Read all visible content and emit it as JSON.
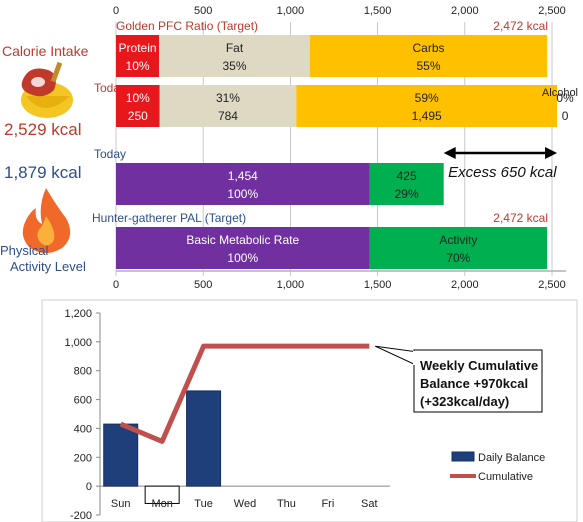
{
  "left_panel": {
    "calorie_intake_label": "Calorie Intake",
    "calorie_intake_value": "2,529 kcal",
    "expenditure_value": "1,879 kcal",
    "activity_label_line1": "Physical",
    "activity_label_line2": "Activity Level"
  },
  "colors": {
    "red": "#e8171c",
    "beige": "#ddd9c3",
    "amber": "#ffc000",
    "purple": "#7030a0",
    "green": "#00b050",
    "navy": "#1f3f7a",
    "cumulative": "#c0504d"
  },
  "chart_data": [
    {
      "type": "bar",
      "orientation": "horizontal",
      "stacked": true,
      "x_ticks": [
        "0",
        "500",
        "1,000",
        "1,500",
        "2,000",
        "2,500"
      ],
      "xlim": [
        0,
        2500
      ],
      "rows": [
        {
          "title": "Golden PFC Ratio (Target)",
          "total_label": "2,472 kcal",
          "segments": [
            {
              "name": "Protein",
              "value": 247,
              "line1": "Protein",
              "line2": "10%",
              "color": "#e8171c"
            },
            {
              "name": "Fat",
              "value": 865,
              "line1": "Fat",
              "line2": "35%",
              "color": "#ddd9c3"
            },
            {
              "name": "Carbs",
              "value": 1360,
              "line1": "Carbs",
              "line2": "55%",
              "color": "#ffc000"
            }
          ]
        },
        {
          "title": "Today",
          "total_label": "",
          "extra_label": "Alcohol",
          "segments": [
            {
              "name": "Protein",
              "value": 250,
              "line1": "10%",
              "line2": "250",
              "color": "#e8171c"
            },
            {
              "name": "Fat",
              "value": 784,
              "line1": "31%",
              "line2": "784",
              "color": "#ddd9c3"
            },
            {
              "name": "Carbs",
              "value": 1495,
              "line1": "59%",
              "line2": "1,495",
              "color": "#ffc000"
            },
            {
              "name": "Alcohol",
              "value": 0,
              "line1": "0%",
              "line2": "0",
              "color": "#ffc000"
            }
          ]
        },
        {
          "title": "Today",
          "total_label": "",
          "segments": [
            {
              "name": "Basic Metabolic Rate",
              "value": 1454,
              "line1": "1,454",
              "line2": "100%",
              "color": "#7030a0"
            },
            {
              "name": "Activity",
              "value": 425,
              "line1": "425",
              "line2": "29%",
              "color": "#00b050"
            }
          ]
        },
        {
          "title": "Hunter-gatherer  PAL (Target)",
          "total_label": "2,472 kcal",
          "segments": [
            {
              "name": "Basic Metabolic Rate",
              "value": 1454,
              "line1": "Basic Metabolic Rate",
              "line2": "100%",
              "color": "#7030a0"
            },
            {
              "name": "Activity",
              "value": 1018,
              "line1": "Activity",
              "line2": "70%",
              "color": "#00b050"
            }
          ]
        }
      ],
      "annotation": {
        "text": "Excess 650 kcal",
        "from": 1879,
        "to": 2529
      }
    },
    {
      "type": "bar",
      "combo": "bar+line",
      "categories": [
        "Sun",
        "Mon",
        "Tue",
        "Wed",
        "Thu",
        "Fri",
        "Sat"
      ],
      "ylim": [
        -200,
        1200
      ],
      "y_ticks": [
        "-200",
        "0",
        "200",
        "400",
        "600",
        "800",
        "1,000",
        "1,200"
      ],
      "y_tick_values": [
        -200,
        0,
        200,
        400,
        600,
        800,
        1000,
        1200
      ],
      "series": [
        {
          "name": "Daily Balance",
          "type": "bar",
          "values": [
            430,
            -120,
            660,
            null,
            null,
            null,
            null
          ],
          "color": "#1f3f7a"
        },
        {
          "name": "Cumulative",
          "type": "line",
          "values": [
            430,
            310,
            970,
            970,
            970,
            970,
            970
          ],
          "color": "#c0504d"
        }
      ],
      "callout": {
        "line1": "Weekly Cumulative",
        "line2": "Balance +970kcal",
        "line3": "(+323kcal/day)"
      },
      "legend_position": "right"
    }
  ]
}
